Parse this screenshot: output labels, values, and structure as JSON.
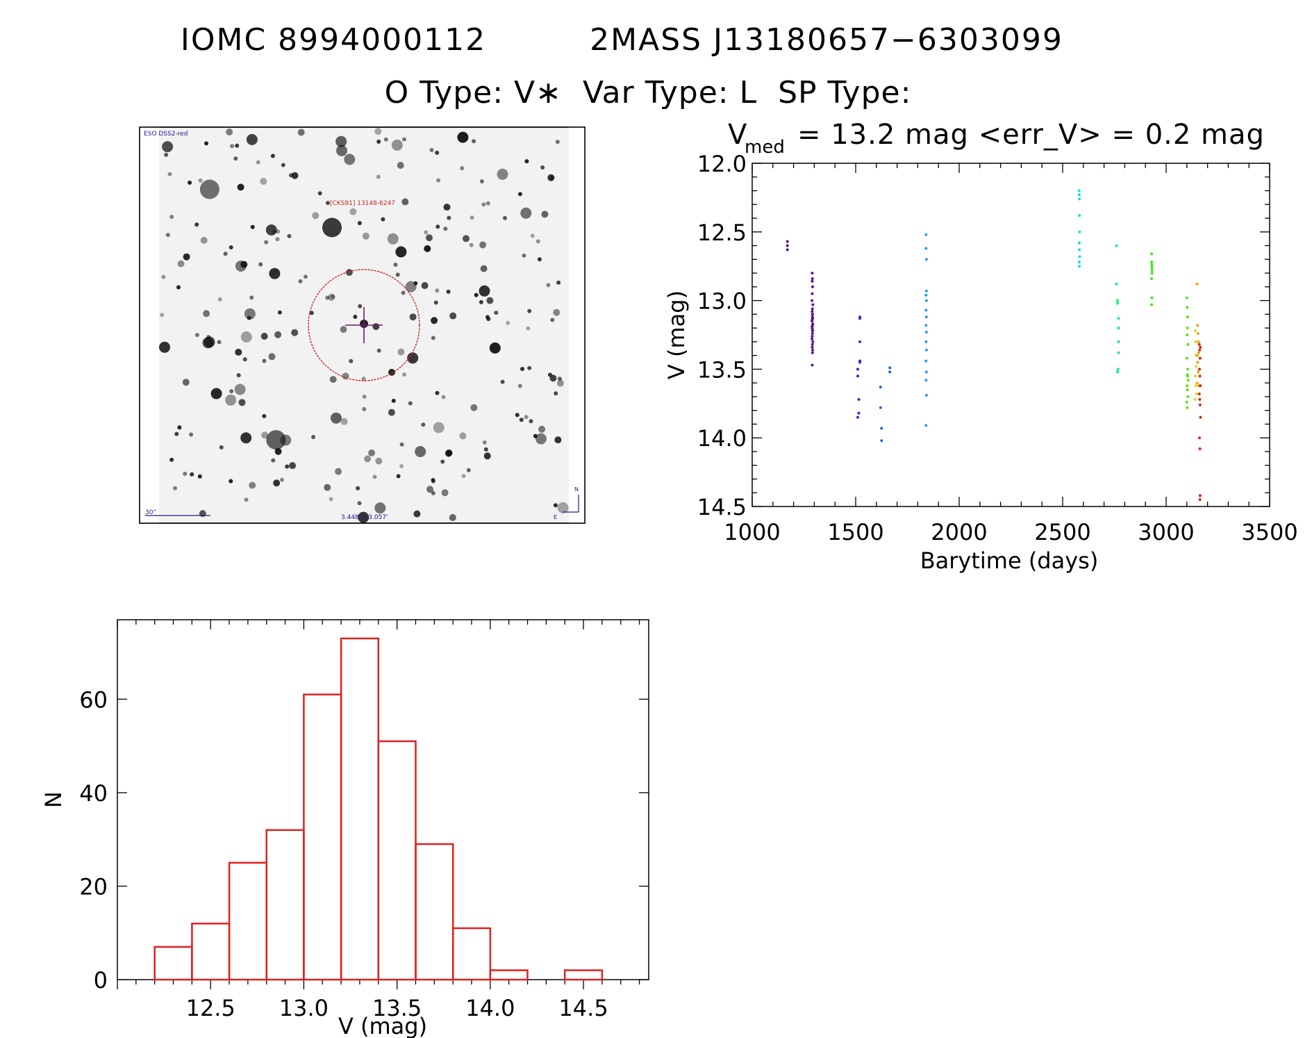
{
  "header": {
    "line1_left": "IOMC 8994000112",
    "line1_right": "2MASS J13180657−6303099",
    "line2": "O Type: V∗  Var Type: L  SP Type:"
  },
  "image_panel": {
    "survey_label": "ESO DSS2-red",
    "target_label": "[CKS91] 13148-6247",
    "scale_label": "30\"",
    "size_label": "3.448' x 3.057'",
    "north_label": "N",
    "east_label": "E",
    "colors": {
      "star": "#111111",
      "circle": "#cc2222",
      "cross": "#6a1a6a",
      "text_red": "#cc2222",
      "text_blue": "#1a1a8c"
    }
  },
  "light_curve": {
    "title_v": "V",
    "title_sub": "med",
    "title_rest": "= 13.2 mag <err_V> = 0.2 mag"
  },
  "chart_data": [
    {
      "type": "scatter",
      "id": "light-curve",
      "title": "V_med = 13.2 mag <err_V> = 0.2 mag",
      "xlabel": "Barytime (days)",
      "ylabel": "V (mag)",
      "xlim": [
        1000,
        3500
      ],
      "ylim": [
        12.0,
        14.5
      ],
      "y_inverted": true,
      "xticks": [
        1000,
        1500,
        2000,
        2500,
        3000,
        3500
      ],
      "yticks": [
        12.0,
        12.5,
        13.0,
        13.5,
        14.0,
        14.5
      ],
      "xtick_labels": [
        "1000",
        "1500",
        "2000",
        "2500",
        "3000",
        "3500"
      ],
      "ytick_labels": [
        "12.0",
        "12.5",
        "13.0",
        "13.5",
        "14.0",
        "14.5"
      ],
      "series": [
        {
          "name": "g1",
          "color": "#5a1070",
          "x": [
            1170,
            1170,
            1170
          ],
          "y": [
            12.57,
            12.6,
            12.63
          ]
        },
        {
          "name": "g2",
          "color": "#5a10a0",
          "x": [
            1290,
            1291,
            1292,
            1290,
            1289,
            1293,
            1291,
            1290,
            1292,
            1291,
            1290,
            1289,
            1293,
            1291,
            1290,
            1292,
            1291,
            1290,
            1289,
            1293,
            1291,
            1290,
            1292,
            1291,
            1290,
            1291,
            1292,
            1290,
            1291,
            1290
          ],
          "y": [
            12.8,
            12.84,
            12.9,
            12.95,
            13.0,
            13.03,
            13.06,
            13.08,
            13.1,
            13.12,
            13.14,
            13.15,
            13.17,
            13.18,
            13.2,
            13.22,
            13.24,
            13.26,
            13.28,
            13.3,
            13.32,
            13.34,
            13.36,
            13.38,
            12.86,
            13.1,
            13.13,
            13.19,
            13.21,
            13.47
          ]
        },
        {
          "name": "g3",
          "color": "#2a2ad0",
          "x": [
            1510,
            1510,
            1520,
            1520,
            1520,
            1520,
            1515,
            1515
          ],
          "y": [
            13.5,
            13.55,
            13.3,
            13.45,
            13.12,
            13.13,
            13.72,
            13.82
          ]
        },
        {
          "name": "g4",
          "color": "#2a2ad0",
          "x": [
            1510,
            1520
          ],
          "y": [
            13.85,
            13.44
          ]
        },
        {
          "name": "g5",
          "color": "#2060e0",
          "x": [
            1620,
            1620,
            1625,
            1625,
            1665,
            1665
          ],
          "y": [
            13.63,
            13.78,
            13.93,
            14.02,
            13.49,
            13.52
          ]
        },
        {
          "name": "g6",
          "color": "#1aa0f0",
          "x": [
            1840,
            1840,
            1842,
            1842,
            1840,
            1842,
            1840,
            1842,
            1840,
            1842,
            1840,
            1842,
            1840,
            1842,
            1840,
            1842,
            1840
          ],
          "y": [
            12.52,
            12.62,
            12.7,
            12.93,
            12.96,
            13.0,
            13.07,
            13.12,
            13.18,
            13.23,
            13.3,
            13.36,
            13.44,
            13.52,
            13.58,
            13.69,
            13.91
          ]
        },
        {
          "name": "g7",
          "color": "#10e0d0",
          "x": [
            2580,
            2580,
            2581,
            2581,
            2582,
            2580,
            2581,
            2582,
            2580,
            2581
          ],
          "y": [
            12.2,
            12.23,
            12.26,
            12.38,
            12.5,
            12.58,
            12.63,
            12.68,
            12.72,
            12.75
          ]
        },
        {
          "name": "g8",
          "color": "#10f080",
          "x": [
            2760,
            2760,
            2765,
            2765,
            2770,
            2770,
            2770,
            2770,
            2768,
            2765
          ],
          "y": [
            12.6,
            12.88,
            13.0,
            13.02,
            13.13,
            13.2,
            13.3,
            13.38,
            13.5,
            13.52
          ]
        },
        {
          "name": "g9",
          "color": "#40e020",
          "x": [
            2930,
            2930,
            2931,
            2932,
            2930,
            2931,
            2930,
            2932,
            2931
          ],
          "y": [
            12.66,
            12.72,
            12.76,
            12.8,
            12.84,
            12.98,
            13.03,
            12.78,
            12.74
          ]
        },
        {
          "name": "g10",
          "color": "#60e010",
          "x": [
            3100,
            3102,
            3104,
            3103,
            3101,
            3105,
            3100,
            3104,
            3102,
            3106,
            3101,
            3103,
            3105,
            3100,
            3102,
            3104
          ],
          "y": [
            12.98,
            13.05,
            13.12,
            13.2,
            13.25,
            13.32,
            13.42,
            13.5,
            13.54,
            13.58,
            13.62,
            13.65,
            13.7,
            13.74,
            13.78,
            13.55
          ]
        },
        {
          "name": "g11",
          "color": "#d0e010",
          "x": [
            3140,
            3142,
            3144,
            3145,
            3141,
            3143,
            3146,
            3140
          ],
          "y": [
            13.22,
            13.3,
            13.4,
            13.48,
            13.55,
            13.62,
            13.68,
            13.72
          ]
        },
        {
          "name": "g12",
          "color": "#f0a010",
          "x": [
            3150,
            3152,
            3154,
            3156,
            3151,
            3153,
            3155,
            3150,
            3157,
            3158
          ],
          "y": [
            12.88,
            13.18,
            13.24,
            13.3,
            13.4,
            13.45,
            13.52,
            13.6,
            13.38,
            13.62
          ]
        },
        {
          "name": "g13",
          "color": "#e02010",
          "x": [
            3160,
            3162,
            3164,
            3161,
            3163,
            3165,
            3160,
            3162,
            3164,
            3166,
            3161,
            3163,
            3164
          ],
          "y": [
            13.32,
            13.36,
            13.42,
            13.5,
            13.55,
            13.62,
            13.68,
            13.72,
            13.76,
            13.85,
            14.0,
            14.08,
            14.42
          ]
        },
        {
          "name": "g14",
          "color": "#e02010",
          "x": [
            3163,
            3165
          ],
          "y": [
            14.45,
            13.34
          ]
        }
      ]
    },
    {
      "type": "bar",
      "id": "histogram",
      "style": "step-histogram",
      "color": "#e02020",
      "xlabel": "V (mag)",
      "ylabel": "N",
      "xlim": [
        12.0,
        14.85
      ],
      "ylim": [
        0,
        77
      ],
      "xticks": [
        12.5,
        13.0,
        13.5,
        14.0,
        14.5
      ],
      "yticks": [
        0,
        20,
        40,
        60
      ],
      "xtick_labels": [
        "12.5",
        "13.0",
        "13.5",
        "14.0",
        "14.5"
      ],
      "ytick_labels": [
        "0",
        "20",
        "40",
        "60"
      ],
      "bin_edges": [
        12.2,
        12.4,
        12.6,
        12.8,
        13.0,
        13.2,
        13.4,
        13.6,
        13.8,
        14.0,
        14.2,
        14.4,
        14.6
      ],
      "values": [
        7,
        12,
        25,
        32,
        61,
        73,
        51,
        29,
        11,
        2,
        0,
        2
      ]
    }
  ]
}
